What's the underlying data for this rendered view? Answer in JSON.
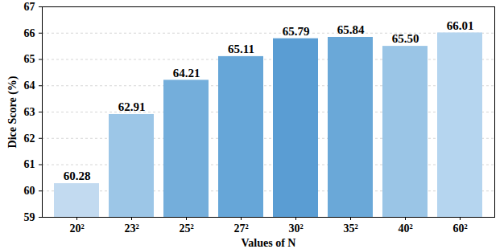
{
  "chart_data": {
    "type": "bar",
    "categories": [
      "20²",
      "23²",
      "25²",
      "27²",
      "30²",
      "35²",
      "40²",
      "60²"
    ],
    "values": [
      60.28,
      62.91,
      64.21,
      65.11,
      65.79,
      65.84,
      65.5,
      66.01
    ],
    "value_labels": [
      "60.28",
      "62.91",
      "64.21",
      "65.11",
      "65.79",
      "65.84",
      "65.50",
      "66.01"
    ],
    "colors": [
      "#c2daf0",
      "#9cc6e7",
      "#74aedb",
      "#66a6d8",
      "#5a9dd3",
      "#6aa8d8",
      "#9ac5e6",
      "#b5d5ef"
    ],
    "x_label": "Values of N",
    "y_label": "Dice Score (%)",
    "ylim": [
      59,
      67
    ],
    "yticks": [
      59,
      60,
      61,
      62,
      63,
      64,
      65,
      66,
      67
    ],
    "grid": true,
    "data_labels": true
  }
}
